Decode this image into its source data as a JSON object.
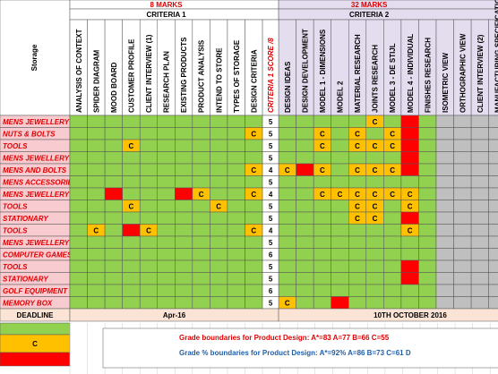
{
  "storage_header": "Storage",
  "score_header": "CRITERIA 1 SCORE /8",
  "colors": {
    "plain": "#92d050",
    "grey": "#bfbfbf",
    "c_fill": "#ffc000",
    "label_fill": "#f8cbd0",
    "label_text": "#e00000",
    "header_1": "#ffffff",
    "header_2": "#e4dcef",
    "deadline": "#fbe4d5"
  },
  "criteria": [
    {
      "marks": "8 MARKS",
      "title": "CRITERIA 1",
      "columns": [
        {
          "label": "ANALYSIS OF CONTEXT"
        },
        {
          "label": "SPIDER DIAGRAM"
        },
        {
          "label": "MOOD BOARD"
        },
        {
          "label": "CUSTOMER PROFILE"
        },
        {
          "label": "CLIENT INTERVIEW (1)"
        },
        {
          "label": "RESEARCH PLAN"
        },
        {
          "label": "EXISTING PRODUCTS"
        },
        {
          "label": "PRODUCT ANALYSIS"
        },
        {
          "label": "INTEND TO STORE"
        },
        {
          "label": "TYPES OF STORAGE"
        },
        {
          "label": "DESIGN CRITERIA"
        }
      ]
    },
    {
      "marks": "32 MARKS",
      "title": "CRITERIA 2",
      "columns": [
        {
          "label": "DESIGN IDEAS"
        },
        {
          "label": "DESIGN DEVELOPMENT"
        },
        {
          "label": "MODEL 1 - DIMENSIONS"
        },
        {
          "label": "MODEL 2"
        },
        {
          "label": "MATERIAL RESEARCH"
        },
        {
          "label": "JOINTS RESEARCH"
        },
        {
          "label": "MODEL 3 - DE STIJL"
        },
        {
          "label": "MODEL 4 - INDIVIDUAL"
        },
        {
          "label": "FINISHES RESEARCH"
        },
        {
          "label": "ISOMETRIC VIEW",
          "fill": "#bfbfbf"
        },
        {
          "label": "ORTHOGRAPHIC VIEW",
          "fill": "#bfbfbf"
        },
        {
          "label": "CLIENT INTERVIEW (2)",
          "fill": "#bfbfbf"
        },
        {
          "label": "MANUFACTURING SPECIFICATION",
          "fill": "#bfbfbf"
        }
      ]
    }
  ],
  "rows": [
    {
      "label": "MENS JEWELLERY",
      "score": 5,
      "c1": [
        null,
        null,
        null,
        null,
        null,
        null,
        null,
        null,
        null,
        null,
        null
      ],
      "c2": [
        null,
        null,
        null,
        null,
        null,
        "C",
        null,
        {
          "fill": "#ff0000"
        },
        null,
        null,
        null,
        null,
        null
      ]
    },
    {
      "label": "NUTS & BOLTS",
      "score": 5,
      "c1": [
        null,
        null,
        null,
        null,
        null,
        null,
        null,
        null,
        null,
        null,
        "C"
      ],
      "c2": [
        null,
        null,
        "C",
        null,
        "C",
        null,
        "C",
        {
          "fill": "#ff0000"
        },
        null,
        null,
        null,
        null,
        null
      ]
    },
    {
      "label": "TOOLS",
      "score": 5,
      "c1": [
        null,
        null,
        null,
        "C",
        null,
        null,
        null,
        null,
        null,
        null,
        null
      ],
      "c2": [
        null,
        null,
        "C",
        null,
        "C",
        "C",
        "C",
        {
          "fill": "#ff0000"
        },
        null,
        null,
        null,
        null,
        null
      ]
    },
    {
      "label": "MENS JEWELLERY",
      "score": 5,
      "c1": [
        null,
        null,
        null,
        null,
        null,
        null,
        null,
        null,
        null,
        null,
        null
      ],
      "c2": [
        null,
        null,
        null,
        null,
        null,
        null,
        null,
        {
          "fill": "#ff0000"
        },
        null,
        null,
        null,
        null,
        null
      ]
    },
    {
      "label": "MENS AND BOLTS",
      "score": 4,
      "c1": [
        null,
        null,
        null,
        null,
        null,
        null,
        null,
        null,
        null,
        null,
        "C"
      ],
      "c2": [
        "C",
        {
          "fill": "#ff0000"
        },
        "C",
        null,
        "C",
        "C",
        "C",
        {
          "fill": "#ff0000"
        },
        null,
        null,
        null,
        null,
        null
      ]
    },
    {
      "label": "MENS ACCESSORIES",
      "score": 5,
      "c1": [
        null,
        null,
        null,
        null,
        null,
        null,
        null,
        null,
        null,
        null,
        null
      ],
      "c2": [
        null,
        null,
        null,
        null,
        null,
        null,
        null,
        null,
        null,
        null,
        null,
        null,
        null
      ]
    },
    {
      "label": "MENS JEWELLERY",
      "score": 4,
      "c1": [
        null,
        null,
        {
          "fill": "#ff0000"
        },
        null,
        null,
        null,
        {
          "fill": "#ff0000"
        },
        "C",
        null,
        null,
        "C"
      ],
      "c2": [
        null,
        null,
        "C",
        "C",
        "C",
        "C",
        "C",
        "C",
        null,
        null,
        null,
        null,
        null
      ]
    },
    {
      "label": "TOOLS",
      "score": 5,
      "c1": [
        null,
        null,
        null,
        "C",
        null,
        null,
        null,
        null,
        "C",
        null,
        null
      ],
      "c2": [
        null,
        null,
        null,
        null,
        "C",
        "C",
        null,
        "C",
        null,
        null,
        null,
        null,
        null
      ]
    },
    {
      "label": "STATIONARY",
      "score": 5,
      "c1": [
        null,
        null,
        null,
        null,
        null,
        null,
        null,
        null,
        null,
        null,
        null
      ],
      "c2": [
        null,
        null,
        null,
        null,
        "C",
        "C",
        null,
        {
          "fill": "#ff0000"
        },
        null,
        null,
        null,
        null,
        null
      ]
    },
    {
      "label": "TOOLS",
      "score": 4,
      "c1": [
        null,
        "C",
        null,
        {
          "fill": "#ff0000"
        },
        "C",
        null,
        null,
        null,
        null,
        null,
        "C"
      ],
      "c2": [
        null,
        null,
        null,
        null,
        null,
        null,
        null,
        "C",
        null,
        null,
        null,
        null,
        null
      ]
    },
    {
      "label": "MENS JEWELLERY",
      "score": 5,
      "c1": [
        null,
        null,
        null,
        null,
        null,
        null,
        null,
        null,
        null,
        null,
        null
      ],
      "c2": [
        null,
        null,
        null,
        null,
        null,
        null,
        null,
        null,
        null,
        null,
        null,
        null,
        null
      ]
    },
    {
      "label": "COMPUTER GAMES",
      "score": 6,
      "c1": [
        null,
        null,
        null,
        null,
        null,
        null,
        null,
        null,
        null,
        null,
        null
      ],
      "c2": [
        null,
        null,
        null,
        null,
        null,
        null,
        null,
        null,
        null,
        null,
        null,
        null,
        null
      ]
    },
    {
      "label": "TOOLS",
      "score": 5,
      "c1": [
        null,
        null,
        null,
        null,
        null,
        null,
        null,
        null,
        null,
        null,
        null
      ],
      "c2": [
        null,
        null,
        null,
        null,
        null,
        null,
        null,
        {
          "fill": "#ff0000"
        },
        null,
        null,
        null,
        null,
        null
      ]
    },
    {
      "label": "STATIONARY",
      "score": 5,
      "c1": [
        null,
        null,
        null,
        null,
        null,
        null,
        null,
        null,
        null,
        null,
        null
      ],
      "c2": [
        null,
        null,
        null,
        null,
        null,
        null,
        null,
        {
          "fill": "#ff0000"
        },
        null,
        null,
        null,
        null,
        null
      ]
    },
    {
      "label": "GOLF EQUIPMENT",
      "score": 6,
      "c1": [
        null,
        null,
        null,
        null,
        null,
        null,
        null,
        null,
        null,
        null,
        null
      ],
      "c2": [
        null,
        null,
        null,
        null,
        null,
        null,
        null,
        null,
        null,
        null,
        null,
        null,
        null
      ]
    },
    {
      "label": "MEMORY BOX",
      "score": 5,
      "c1": [
        null,
        null,
        null,
        null,
        null,
        null,
        null,
        null,
        null,
        null,
        null
      ],
      "c2": [
        "C",
        null,
        null,
        {
          "fill": "#ff0000"
        },
        null,
        null,
        null,
        null,
        null,
        null,
        null,
        null,
        null
      ]
    }
  ],
  "deadline": {
    "label": "DEADLINE",
    "dates": [
      "Apr-16",
      "10TH OCTOBER 2016"
    ]
  },
  "legend": {
    "key": [
      {
        "fill": "#92d050"
      },
      {
        "label": "C",
        "fill": "#ffc000"
      },
      {
        "fill": "#ff0000"
      }
    ],
    "notes": [
      {
        "text": "Grade boundaries for Product Design:  A*=83  A=77  B=66  C=55",
        "color": "#e00000"
      },
      {
        "text": "Grade % boundaries for Product Design:  A*=92%  A=86  B=73  C=61  D",
        "color": "#1f5fa8"
      }
    ]
  }
}
